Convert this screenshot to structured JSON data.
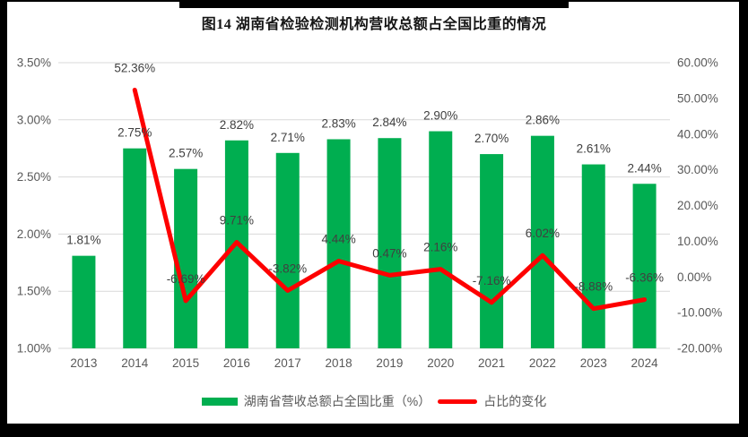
{
  "title": "图14 湖南省检验检测机构营收总额占全国比重的情况",
  "colors": {
    "bar": "#00AE50",
    "line": "#FE0000",
    "grid": "#D9D9D9",
    "tick_text": "#595959",
    "label_text": "#404040"
  },
  "chart_data": {
    "type": "bar",
    "combo": "bar+line",
    "title": "图14 湖南省检验检测机构营收总额占全国比重的情况",
    "categories": [
      "2013",
      "2014",
      "2015",
      "2016",
      "2017",
      "2018",
      "2019",
      "2020",
      "2021",
      "2022",
      "2023",
      "2024"
    ],
    "series": [
      {
        "name": "湖南省营收总额占全国比重（%）",
        "type": "bar",
        "axis": "left",
        "color": "#00AE50",
        "values": [
          1.81,
          2.75,
          2.57,
          2.82,
          2.71,
          2.83,
          2.84,
          2.9,
          2.7,
          2.86,
          2.61,
          2.44
        ],
        "labels": [
          "1.81%",
          "2.75%",
          "2.57%",
          "2.82%",
          "2.71%",
          "2.83%",
          "2.84%",
          "2.90%",
          "2.70%",
          "2.86%",
          "2.61%",
          "2.44%"
        ]
      },
      {
        "name": "占比的变化",
        "type": "line",
        "axis": "right",
        "color": "#FE0000",
        "values": [
          null,
          52.36,
          -6.69,
          9.71,
          -3.82,
          4.44,
          0.47,
          2.16,
          -7.16,
          6.02,
          -8.88,
          -6.36
        ],
        "labels": [
          null,
          "52.36%",
          "-6.69%",
          "9.71%",
          "-3.82%",
          "4.44%",
          "0.47%",
          "2.16%",
          "-7.16%",
          "6.02%",
          "-8.88%",
          "-6.36%"
        ]
      }
    ],
    "left_axis": {
      "min": 1.0,
      "max": 3.5,
      "ticks": [
        "3.50%",
        "3.00%",
        "2.50%",
        "2.00%",
        "1.50%",
        "1.00%"
      ]
    },
    "right_axis": {
      "min": -20,
      "max": 60,
      "ticks": [
        "60.00%",
        "50.00%",
        "40.00%",
        "30.00%",
        "20.00%",
        "10.00%",
        "0.00%",
        "-10.00%",
        "-20.00%"
      ]
    },
    "grid": true,
    "legend_position": "bottom"
  },
  "legend": {
    "items": [
      {
        "label": "湖南省营收总额占全国比重（%）"
      },
      {
        "label": "占比的变化"
      }
    ]
  }
}
